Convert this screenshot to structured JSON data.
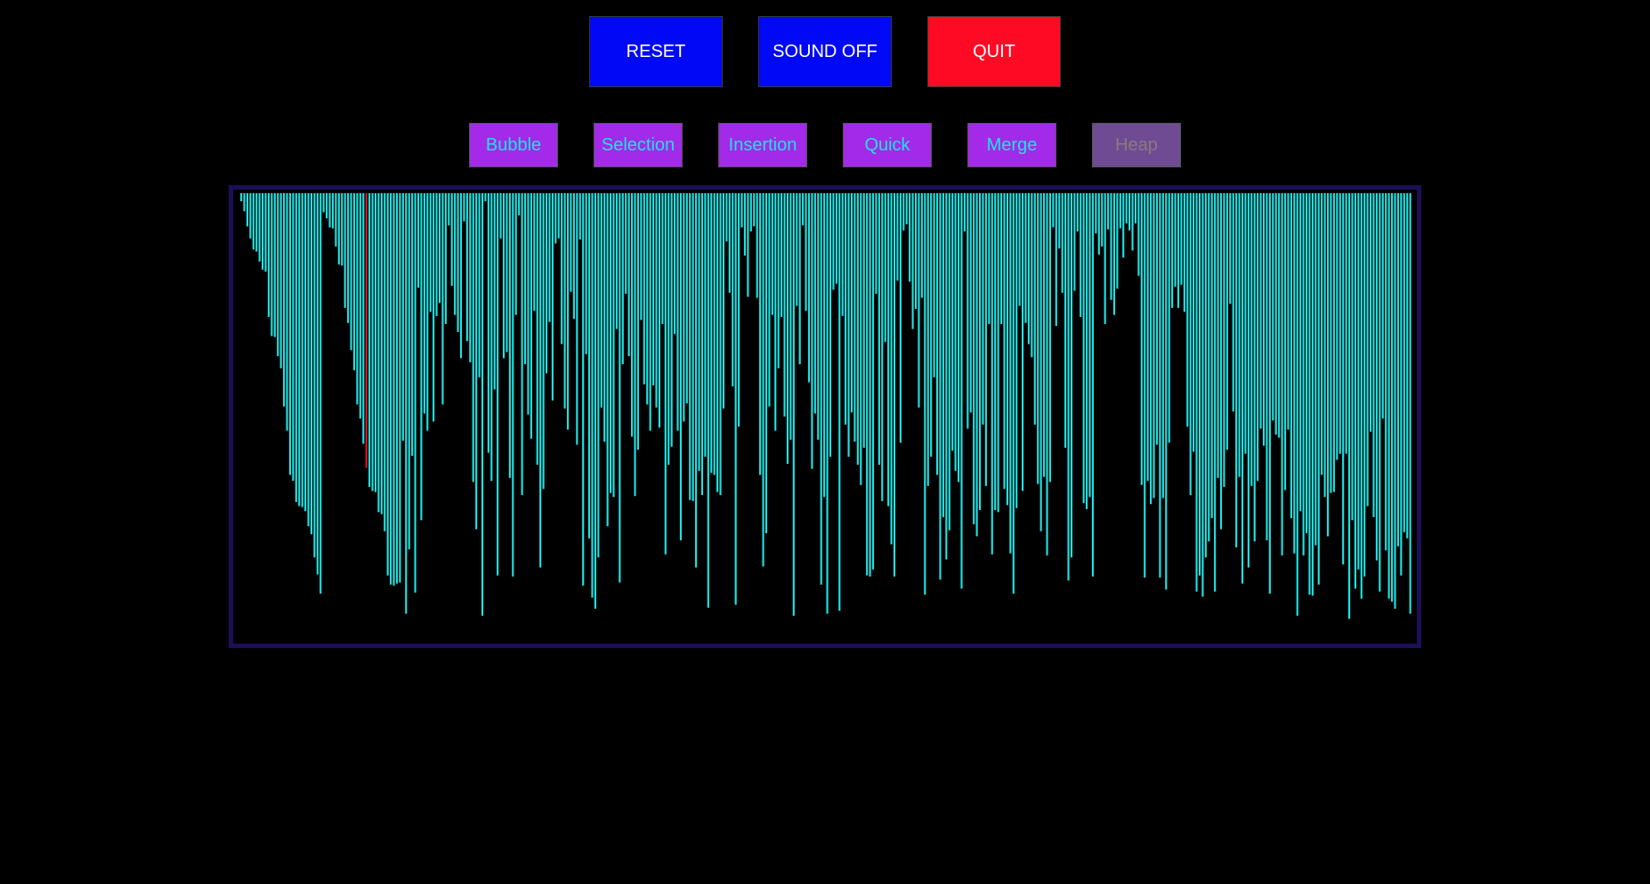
{
  "controls": {
    "reset": {
      "label": "RESET",
      "color": "#0008f5"
    },
    "sound": {
      "label": "SOUND OFF",
      "color": "#0008f5"
    },
    "quit": {
      "label": "QUIT",
      "color": "#ff0a24"
    }
  },
  "algorithms": {
    "items": [
      {
        "label": "Bubble",
        "state": "enabled"
      },
      {
        "label": "Selection",
        "state": "enabled"
      },
      {
        "label": "Insertion",
        "state": "enabled"
      },
      {
        "label": "Quick",
        "state": "enabled"
      },
      {
        "label": "Merge",
        "state": "enabled"
      },
      {
        "label": "Heap",
        "state": "active"
      }
    ],
    "enabled_bg": "#a22ae8",
    "enabled_text": "#1ee3ea",
    "active_bg": "#6e4b93",
    "active_text": "#8a7a7e"
  },
  "visualizer": {
    "bar_color": "#1ee3e3",
    "highlight_color": "#e01621",
    "highlight_index": 41,
    "max_value": 430,
    "values": [
      8,
      18,
      33,
      45,
      56,
      58,
      68,
      76,
      78,
      123,
      142,
      143,
      162,
      174,
      212,
      236,
      280,
      286,
      307,
      311,
      312,
      316,
      331,
      339,
      362,
      379,
      398,
      19,
      25,
      34,
      35,
      53,
      71,
      72,
      114,
      129,
      156,
      176,
      210,
      224,
      249,
      273,
      292,
      296,
      297,
      317,
      319,
      336,
      380,
      389,
      390,
      388,
      387,
      246,
      418,
      354,
      261,
      397,
      94,
      325,
      219,
      236,
      118,
      227,
      122,
      109,
      210,
      130,
      32,
      92,
      121,
      138,
      164,
      28,
      147,
      168,
      287,
      334,
      183,
      420,
      8,
      258,
      286,
      195,
      380,
      45,
      164,
      158,
      283,
      381,
      121,
      22,
      300,
      170,
      220,
      244,
      117,
      270,
      372,
      294,
      179,
      128,
      206,
      50,
      45,
      150,
      214,
      235,
      98,
      125,
      250,
      46,
      390,
      160,
      343,
      402,
      413,
      362,
      213,
      247,
      331,
      298,
      302,
      135,
      387,
      170,
      100,
      162,
      242,
      301,
      255,
      126,
      190,
      210,
      236,
      191,
      213,
      233,
      130,
      359,
      270,
      252,
      140,
      236,
      345,
      227,
      209,
      305,
      306,
      372,
      276,
      300,
      262,
      412,
      278,
      280,
      297,
      300,
      214,
      48,
      99,
      192,
      409,
      232,
      34,
      62,
      103,
      38,
      33,
      104,
      280,
      371,
      338,
      212,
      121,
      236,
      174,
      123,
      222,
      269,
      245,
      420,
      112,
      170,
      32,
      117,
      188,
      274,
      219,
      245,
      389,
      302,
      418,
      262,
      96,
      90,
      415,
      122,
      230,
      262,
      218,
      247,
      270,
      290,
      253,
      380,
      381,
      374,
      100,
      270,
      306,
      148,
      311,
      349,
      381,
      87,
      248,
      37,
      31,
      88,
      135,
      115,
      213,
      104,
      399,
      291,
      262,
      183,
      280,
      384,
      322,
      364,
      335,
      256,
      276,
      287,
      393,
      38,
      234,
      218,
      329,
      341,
      315,
      230,
      291,
      130,
      359,
      315,
      317,
      130,
      294,
      310,
      358,
      398,
      313,
      112,
      296,
      129,
      150,
      163,
      230,
      289,
      336,
      282,
      360,
      287,
      34,
      132,
      55,
      99,
      253,
      385,
      362,
      97,
      38,
      123,
      308,
      314,
      302,
      381,
      40,
      61,
      53,
      130,
      36,
      106,
      121,
      95,
      35,
      64,
      30,
      37,
      57,
      30,
      82,
      290,
      382,
      286,
      309,
      303,
      250,
      382,
      303,
      394,
      248,
      114,
      93,
      114,
      91,
      118,
      232,
      300,
      257,
      396,
      380,
      401,
      362,
      346,
      323,
      396,
      283,
      334,
      292,
      255,
      110,
      217,
      352,
      282,
      388,
      259,
      372,
      291,
      346,
      286,
      234,
      251,
      345,
      398,
      226,
      240,
      243,
      360,
      295,
      235,
      323,
      358,
      420,
      316,
      360,
      338,
      399,
      400,
      350,
      389,
      280,
      302,
      341,
      298,
      297,
      265,
      259,
      369,
      259,
      423,
      325,
      393,
      374,
      403,
      381,
      311,
      237,
      322,
      365,
      396,
      224,
      355,
      403,
      406,
      413,
      351,
      380,
      337,
      343,
      418
    ]
  }
}
